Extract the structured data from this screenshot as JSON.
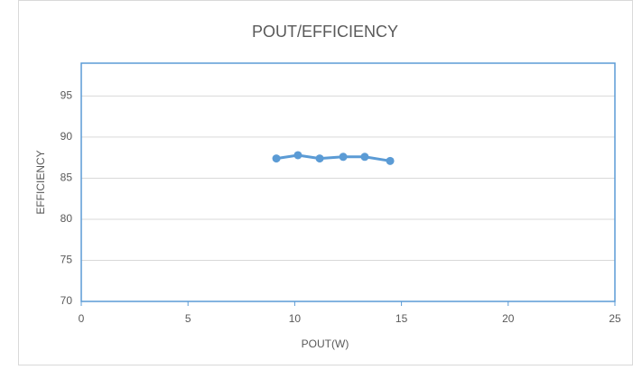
{
  "chart_data": {
    "type": "line",
    "title": "POUT/EFFICIENCY",
    "xlabel": "POUT(W)",
    "ylabel": "EFFICIENCY",
    "x": [
      9.14,
      10.15,
      11.17,
      12.27,
      13.28,
      14.47
    ],
    "series": [
      {
        "name": "EFFICIENCY",
        "color": "#5b9bd5",
        "values": [
          87.4,
          87.8,
          87.4,
          87.6,
          87.6,
          87.1
        ]
      }
    ],
    "xlim": [
      0,
      25
    ],
    "xticks": [
      0,
      5,
      10,
      15,
      20,
      25
    ],
    "ylim": [
      70,
      99
    ],
    "yticks": [
      70,
      75,
      80,
      85,
      90,
      95
    ],
    "grid": true
  }
}
